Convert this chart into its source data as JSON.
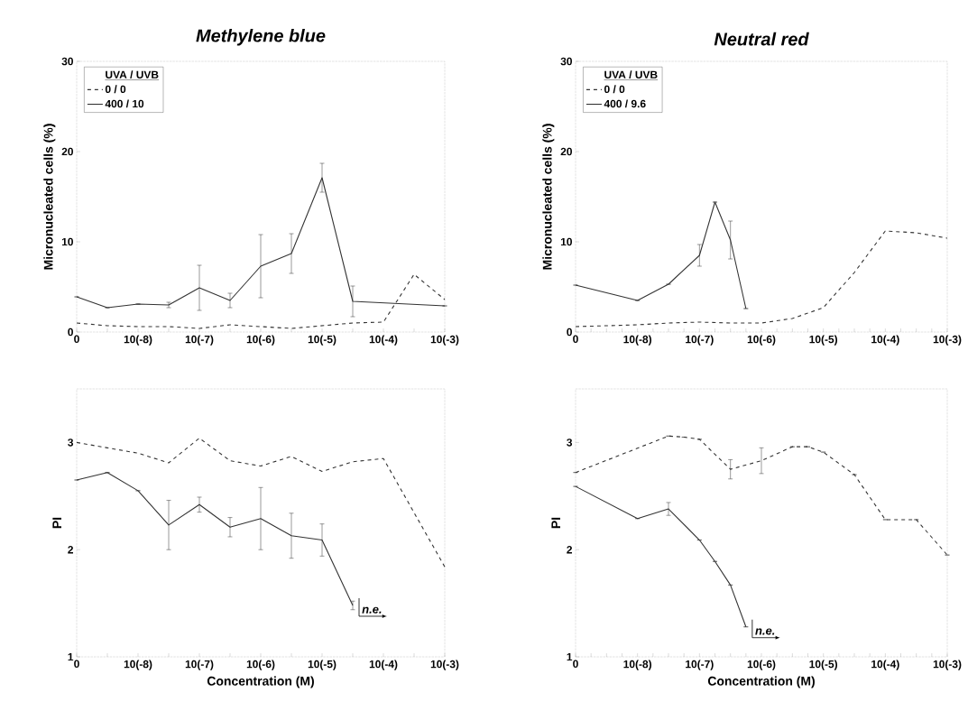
{
  "chart_data": [
    {
      "type": "line",
      "title": "Methylene blue",
      "ylabel": "Micronucleated cells (%)",
      "legend_title": "UVA / UVB",
      "legend": "top left",
      "categories": [
        "0",
        null,
        "10(-8)",
        null,
        "10(-7)",
        null,
        "10(-6)",
        null,
        "10(-5)",
        null,
        "10(-4)",
        null,
        "10(-3)"
      ],
      "ylim": [
        0,
        30
      ],
      "yticks": [
        0,
        10,
        20,
        30
      ],
      "series": [
        {
          "name": "0 / 0",
          "color": "#333333",
          "line_style": "dashed",
          "values": [
            1.0,
            0.7,
            0.6,
            0.6,
            0.4,
            0.8,
            0.6,
            0.4,
            0.7,
            1.0,
            1.1,
            6.4,
            3.6
          ]
        },
        {
          "name": "400 / 10",
          "color": "#333333",
          "line_style": "solid",
          "values": [
            3.9,
            2.7,
            3.1,
            3.0,
            4.9,
            3.5,
            7.3,
            8.7,
            17.1,
            3.4,
            null,
            null,
            2.9
          ],
          "errors": [
            null,
            null,
            null,
            0.3,
            2.5,
            0.8,
            3.5,
            2.2,
            1.6,
            1.7,
            null,
            null,
            null
          ]
        }
      ]
    },
    {
      "type": "line",
      "title": "Neutral red",
      "ylabel": "Micronucleated cells (%)",
      "legend_title": "UVA / UVB",
      "legend": "top left",
      "categories": [
        "0",
        null,
        null,
        null,
        "10(-8)",
        null,
        null,
        null,
        "10(-7)",
        null,
        null,
        null,
        "10(-6)",
        null,
        null,
        null,
        "10(-5)",
        null,
        null,
        null,
        "10(-4)",
        null,
        null,
        null,
        "10(-3)"
      ],
      "ylim": [
        0,
        30
      ],
      "yticks": [
        0,
        10,
        20,
        30
      ],
      "series": [
        {
          "name": "0 / 0",
          "color": "#333333",
          "line_style": "dashed",
          "values": [
            0.6,
            null,
            null,
            null,
            0.8,
            null,
            1.0,
            null,
            1.1,
            null,
            1.0,
            null,
            1.0,
            null,
            1.5,
            null,
            2.7,
            null,
            6.6,
            null,
            11.2,
            null,
            11.0,
            null,
            10.4
          ]
        },
        {
          "name": "400 / 9.6",
          "color": "#333333",
          "line_style": "solid",
          "values": [
            5.2,
            null,
            null,
            null,
            3.5,
            null,
            5.3,
            null,
            8.5,
            14.4,
            10.2,
            2.6,
            null,
            null,
            null,
            null,
            null,
            null,
            null,
            null,
            null,
            null,
            null,
            null,
            null
          ],
          "errors": [
            null,
            null,
            null,
            null,
            null,
            null,
            null,
            null,
            1.2,
            null,
            2.1,
            null,
            null,
            null,
            null,
            null,
            null,
            null,
            null,
            null,
            null,
            null,
            null,
            null,
            null
          ]
        }
      ]
    },
    {
      "type": "line",
      "xlabel": "Concentration (M)",
      "ylabel": "PI",
      "categories": [
        "0",
        null,
        "10(-8)",
        null,
        "10(-7)",
        null,
        "10(-6)",
        null,
        "10(-5)",
        null,
        "10(-4)",
        null,
        "10(-3)"
      ],
      "ylim": [
        1,
        3.5
      ],
      "yticks": [
        1,
        2,
        3
      ],
      "annotations": [
        "n.e."
      ],
      "series": [
        {
          "color": "#333333",
          "line_style": "dashed",
          "values": [
            3.0,
            2.95,
            2.9,
            2.81,
            3.04,
            2.83,
            2.78,
            2.87,
            2.73,
            2.82,
            2.85,
            null,
            1.84
          ]
        },
        {
          "color": "#333333",
          "line_style": "solid",
          "values": [
            2.65,
            2.72,
            2.55,
            2.23,
            2.42,
            2.21,
            2.29,
            2.13,
            2.09,
            1.48,
            null,
            null,
            null
          ],
          "errors": [
            null,
            null,
            null,
            0.23,
            0.07,
            0.09,
            0.29,
            0.21,
            0.15,
            0.04,
            null,
            null,
            null
          ]
        }
      ]
    },
    {
      "type": "line",
      "xlabel": "Concentration (M)",
      "ylabel": "PI",
      "categories": [
        "0",
        null,
        null,
        null,
        "10(-8)",
        null,
        null,
        null,
        "10(-7)",
        null,
        null,
        null,
        "10(-6)",
        null,
        null,
        null,
        "10(-5)",
        null,
        null,
        null,
        "10(-4)",
        null,
        null,
        null,
        "10(-3)"
      ],
      "ylim": [
        1,
        3.5
      ],
      "yticks": [
        1,
        2,
        3
      ],
      "annotations": [
        "n.e."
      ],
      "series": [
        {
          "color": "#333333",
          "line_style": "dashed",
          "values": [
            2.72,
            null,
            null,
            null,
            null,
            null,
            3.06,
            3.05,
            3.03,
            null,
            2.75,
            null,
            2.83,
            null,
            2.96,
            2.96,
            2.91,
            null,
            2.7,
            null,
            2.28,
            null,
            2.28,
            null,
            1.95
          ],
          "errors": [
            null,
            null,
            null,
            null,
            null,
            null,
            null,
            null,
            null,
            null,
            0.09,
            null,
            0.12,
            null,
            null,
            null,
            null,
            null,
            null,
            null,
            null,
            null,
            null,
            null,
            null
          ]
        },
        {
          "color": "#333333",
          "line_style": "solid",
          "values": [
            2.59,
            null,
            null,
            null,
            2.29,
            null,
            2.38,
            null,
            2.09,
            1.89,
            1.67,
            1.28,
            null,
            null,
            null,
            null,
            null,
            null,
            null,
            null,
            null,
            null,
            null,
            null,
            null
          ],
          "errors": [
            null,
            null,
            null,
            null,
            null,
            null,
            0.06,
            null,
            null,
            null,
            null,
            null,
            null,
            null,
            null,
            null,
            null,
            null,
            null,
            null,
            null,
            null,
            null,
            null,
            null
          ]
        }
      ]
    }
  ]
}
